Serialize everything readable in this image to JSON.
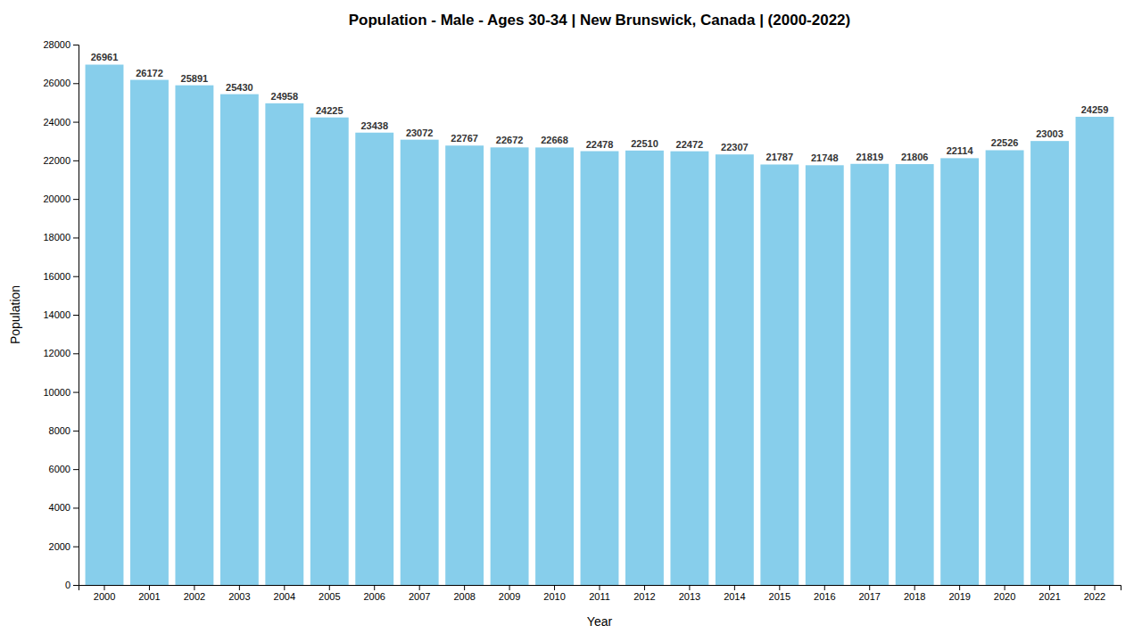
{
  "chart_data": {
    "type": "bar",
    "title": "Population - Male - Ages 30-34 | New Brunswick, Canada |  (2000-2022)",
    "xlabel": "Year",
    "ylabel": "Population",
    "categories": [
      "2000",
      "2001",
      "2002",
      "2003",
      "2004",
      "2005",
      "2006",
      "2007",
      "2008",
      "2009",
      "2010",
      "2011",
      "2012",
      "2013",
      "2014",
      "2015",
      "2016",
      "2017",
      "2018",
      "2019",
      "2020",
      "2021",
      "2022"
    ],
    "values": [
      26961,
      26172,
      25891,
      25430,
      24958,
      24225,
      23438,
      23072,
      22767,
      22672,
      22668,
      22478,
      22510,
      22472,
      22307,
      21787,
      21748,
      21819,
      21806,
      22114,
      22526,
      23003,
      24259
    ],
    "color": "#87ceeb",
    "ylim": [
      0,
      28000
    ],
    "yticks": [
      0,
      2000,
      4000,
      6000,
      8000,
      10000,
      12000,
      14000,
      16000,
      18000,
      20000,
      22000,
      24000,
      26000,
      28000
    ],
    "grid": false,
    "data_labels": true
  }
}
